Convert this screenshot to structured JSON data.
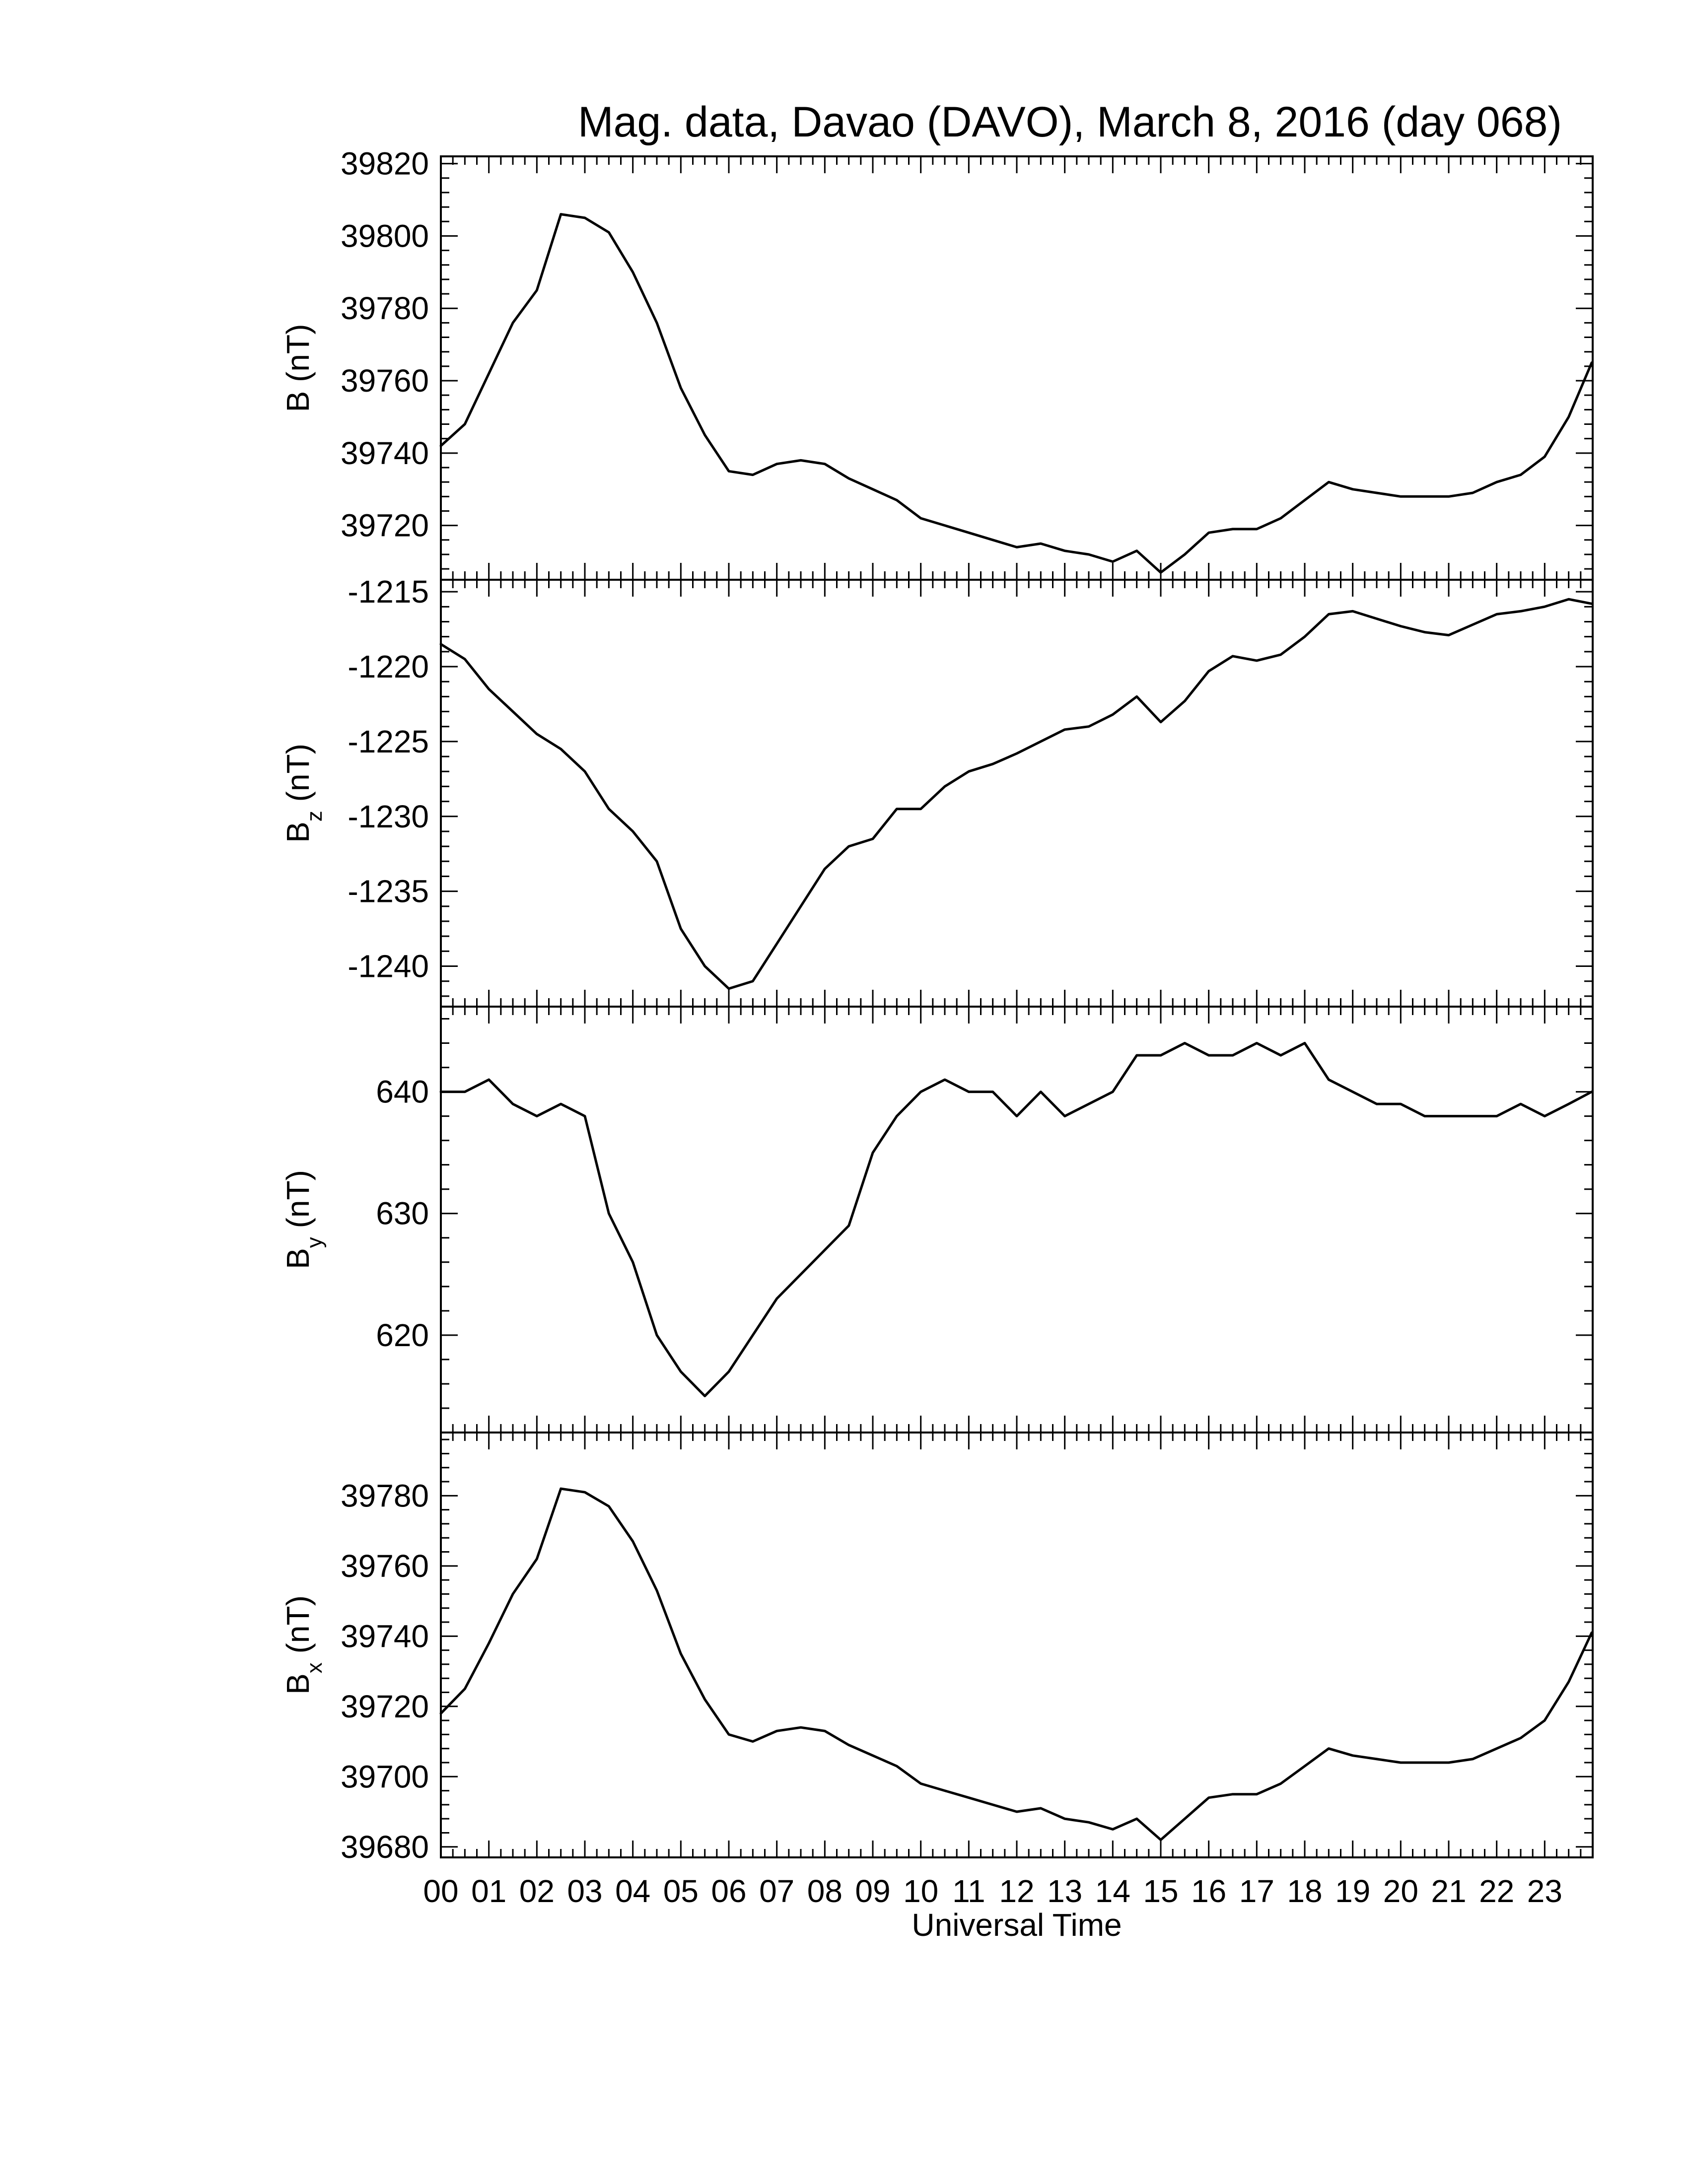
{
  "chart_data": {
    "type": "line",
    "title": "Mag. data, Davao (DAVO), March 8, 2016 (day 068)",
    "xlabel": "Universal Time",
    "x_tick_labels": [
      "00",
      "01",
      "02",
      "03",
      "04",
      "05",
      "06",
      "07",
      "08",
      "09",
      "10",
      "11",
      "12",
      "13",
      "14",
      "15",
      "16",
      "17",
      "18",
      "19",
      "20",
      "21",
      "22",
      "23"
    ],
    "xlim": [
      0,
      24
    ],
    "line_color": "#000000",
    "panels": [
      {
        "ylabel": "B (nT)",
        "ylabel_main": "B",
        "ylabel_sub": "",
        "ylabel_unit": " (nT)",
        "ylim": [
          39705,
          39822
        ],
        "y_ticks": [
          39720,
          39740,
          39760,
          39780,
          39800,
          39820
        ],
        "y_tick_labels": [
          "39720",
          "39740",
          "39760",
          "39780",
          "39800",
          "39820"
        ],
        "x": [
          0,
          0.5,
          1,
          1.5,
          2,
          2.5,
          3,
          3.5,
          4,
          4.5,
          5,
          5.5,
          6,
          6.5,
          7,
          7.5,
          8,
          8.5,
          9,
          9.5,
          10,
          10.5,
          11,
          11.5,
          12,
          12.5,
          13,
          13.5,
          14,
          14.5,
          15,
          15.5,
          16,
          16.5,
          17,
          17.5,
          18,
          18.5,
          19,
          19.5,
          20,
          20.5,
          21,
          21.5,
          22,
          22.5,
          23,
          23.5,
          23.98
        ],
        "y": [
          39742,
          39748,
          39762,
          39776,
          39785,
          39806,
          39805,
          39801,
          39790,
          39776,
          39758,
          39745,
          39735,
          39734,
          39737,
          39738,
          39737,
          39733,
          39730,
          39727,
          39722,
          39720,
          39718,
          39716,
          39714,
          39715,
          39713,
          39712,
          39710,
          39713,
          39707,
          39712,
          39718,
          39719,
          39719,
          39722,
          39727,
          39732,
          39730,
          39729,
          39728,
          39728,
          39728,
          39729,
          39732,
          39734,
          39739,
          39750,
          39765
        ]
      },
      {
        "ylabel": "Bz (nT)",
        "ylabel_main": "B",
        "ylabel_sub": "z",
        "ylabel_unit": " (nT)",
        "ylim": [
          -1242.7,
          -1214.2
        ],
        "y_ticks": [
          -1240,
          -1235,
          -1230,
          -1225,
          -1220,
          -1215
        ],
        "y_tick_labels": [
          "-1240",
          "-1235",
          "-1230",
          "-1225",
          "-1220",
          "-1215"
        ],
        "x": [
          0,
          0.5,
          1,
          1.5,
          2,
          2.5,
          3,
          3.5,
          4,
          4.5,
          5,
          5.5,
          6,
          6.5,
          7,
          7.5,
          8,
          8.5,
          9,
          9.5,
          10,
          10.5,
          11,
          11.5,
          12,
          12.5,
          13,
          13.5,
          14,
          14.5,
          15,
          15.5,
          16,
          16.5,
          17,
          17.5,
          18,
          18.5,
          19,
          19.5,
          20,
          20.5,
          21,
          21.5,
          22,
          22.5,
          23,
          23.5,
          23.98
        ],
        "y": [
          -1218.5,
          -1219.5,
          -1221.5,
          -1223.0,
          -1224.5,
          -1225.5,
          -1227.0,
          -1229.5,
          -1231.0,
          -1233.0,
          -1237.5,
          -1240.0,
          -1241.5,
          -1241.0,
          -1238.5,
          -1236.0,
          -1233.5,
          -1232.0,
          -1231.5,
          -1229.5,
          -1229.5,
          -1228.0,
          -1227.0,
          -1226.5,
          -1225.8,
          -1225.0,
          -1224.2,
          -1224.0,
          -1223.2,
          -1222.0,
          -1223.7,
          -1222.3,
          -1220.3,
          -1219.3,
          -1219.6,
          -1219.2,
          -1218.0,
          -1216.5,
          -1216.3,
          -1216.8,
          -1217.3,
          -1217.7,
          -1217.9,
          -1217.2,
          -1216.5,
          -1216.3,
          -1216.0,
          -1215.5,
          -1215.8
        ]
      },
      {
        "ylabel": "By (nT)",
        "ylabel_main": "B",
        "ylabel_sub": "y",
        "ylabel_unit": " (nT)",
        "ylim": [
          612,
          647
        ],
        "y_ticks": [
          620,
          630,
          640
        ],
        "y_tick_labels": [
          "620",
          "630",
          "640"
        ],
        "x": [
          0,
          0.5,
          1,
          1.5,
          2,
          2.5,
          3,
          3.5,
          4,
          4.5,
          5,
          5.5,
          6,
          6.5,
          7,
          7.5,
          8,
          8.5,
          9,
          9.5,
          10,
          10.5,
          11,
          11.5,
          12,
          12.5,
          13,
          13.5,
          14,
          14.5,
          15,
          15.5,
          16,
          16.5,
          17,
          17.5,
          18,
          18.5,
          19,
          19.5,
          20,
          20.5,
          21,
          21.5,
          22,
          22.5,
          23,
          23.5,
          23.98
        ],
        "y": [
          640,
          640,
          641,
          639,
          638,
          639,
          638,
          630,
          626,
          620,
          617,
          615,
          617,
          620,
          623,
          625,
          627,
          629,
          635,
          638,
          640,
          641,
          640,
          640,
          638,
          640,
          638,
          639,
          640,
          643,
          643,
          644,
          643,
          643,
          644,
          643,
          644,
          641,
          640,
          639,
          639,
          638,
          638,
          638,
          638,
          639,
          638,
          639,
          640
        ]
      },
      {
        "ylabel": "Bx (nT)",
        "ylabel_main": "B",
        "ylabel_sub": "x",
        "ylabel_unit": " (nT)",
        "ylim": [
          39677,
          39798
        ],
        "y_ticks": [
          39680,
          39700,
          39720,
          39740,
          39760,
          39780
        ],
        "y_tick_labels": [
          "39680",
          "39700",
          "39720",
          "39740",
          "39760",
          "39780"
        ],
        "x": [
          0,
          0.5,
          1,
          1.5,
          2,
          2.5,
          3,
          3.5,
          4,
          4.5,
          5,
          5.5,
          6,
          6.5,
          7,
          7.5,
          8,
          8.5,
          9,
          9.5,
          10,
          10.5,
          11,
          11.5,
          12,
          12.5,
          13,
          13.5,
          14,
          14.5,
          15,
          15.5,
          16,
          16.5,
          17,
          17.5,
          18,
          18.5,
          19,
          19.5,
          20,
          20.5,
          21,
          21.5,
          22,
          22.5,
          23,
          23.5,
          23.98
        ],
        "y": [
          39718,
          39725,
          39738,
          39752,
          39762,
          39782,
          39781,
          39777,
          39767,
          39753,
          39735,
          39722,
          39712,
          39710,
          39713,
          39714,
          39713,
          39709,
          39706,
          39703,
          39698,
          39696,
          39694,
          39692,
          39690,
          39691,
          39688,
          39687,
          39685,
          39688,
          39682,
          39688,
          39694,
          39695,
          39695,
          39698,
          39703,
          39708,
          39706,
          39705,
          39704,
          39704,
          39704,
          39705,
          39708,
          39711,
          39716,
          39727,
          39741
        ]
      }
    ]
  }
}
